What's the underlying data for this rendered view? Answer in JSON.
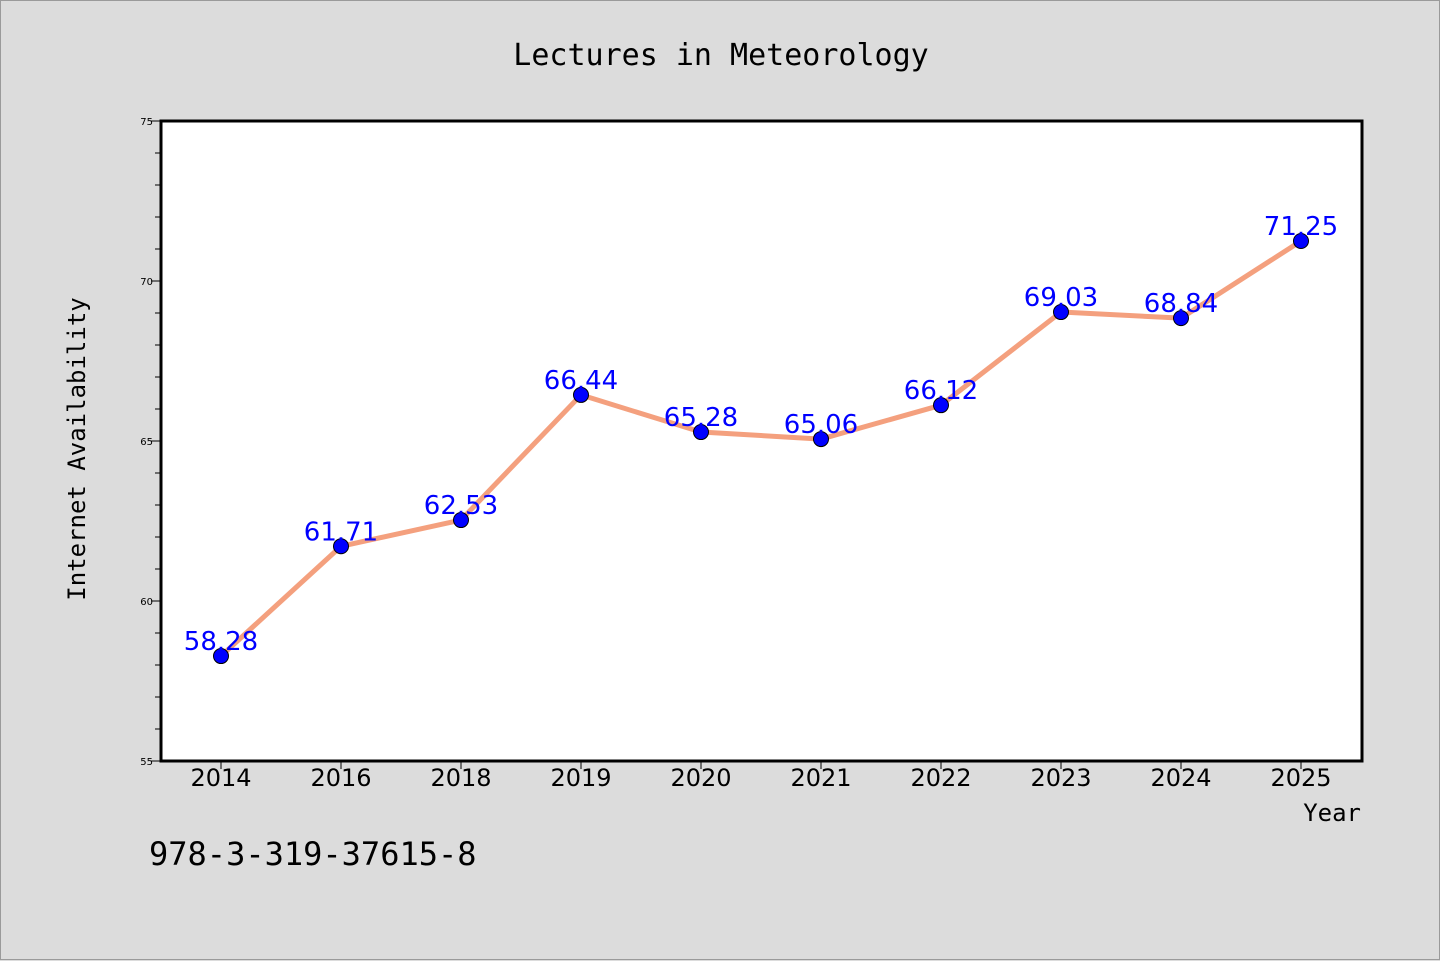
{
  "chart_data": {
    "type": "line",
    "title": "Lectures in Meteorology",
    "xlabel": "Year",
    "ylabel": "Internet Availability",
    "categories": [
      "2014",
      "2016",
      "2018",
      "2019",
      "2020",
      "2021",
      "2022",
      "2023",
      "2024",
      "2025"
    ],
    "series": [
      {
        "values": [
          58.28,
          61.71,
          62.53,
          66.44,
          65.28,
          65.06,
          66.12,
          69.03,
          68.84,
          71.25
        ],
        "labels": [
          "58.28",
          "61.71",
          "62.53",
          "66.44",
          "65.28",
          "65.06",
          "66.12",
          "69.03",
          "68.84",
          "71.25"
        ],
        "line_color": "#f4a07e",
        "marker_color": "#0000ff"
      }
    ],
    "ylim": [
      55,
      75
    ],
    "yticks": [
      "55",
      "60",
      "65",
      "70",
      "75"
    ],
    "grid": false,
    "legend": "none"
  },
  "footer_text": "978-3-319-37615-8",
  "colors": {
    "background": "#dcdcdc",
    "plot_background": "#ffffff",
    "axes": "#000000"
  }
}
